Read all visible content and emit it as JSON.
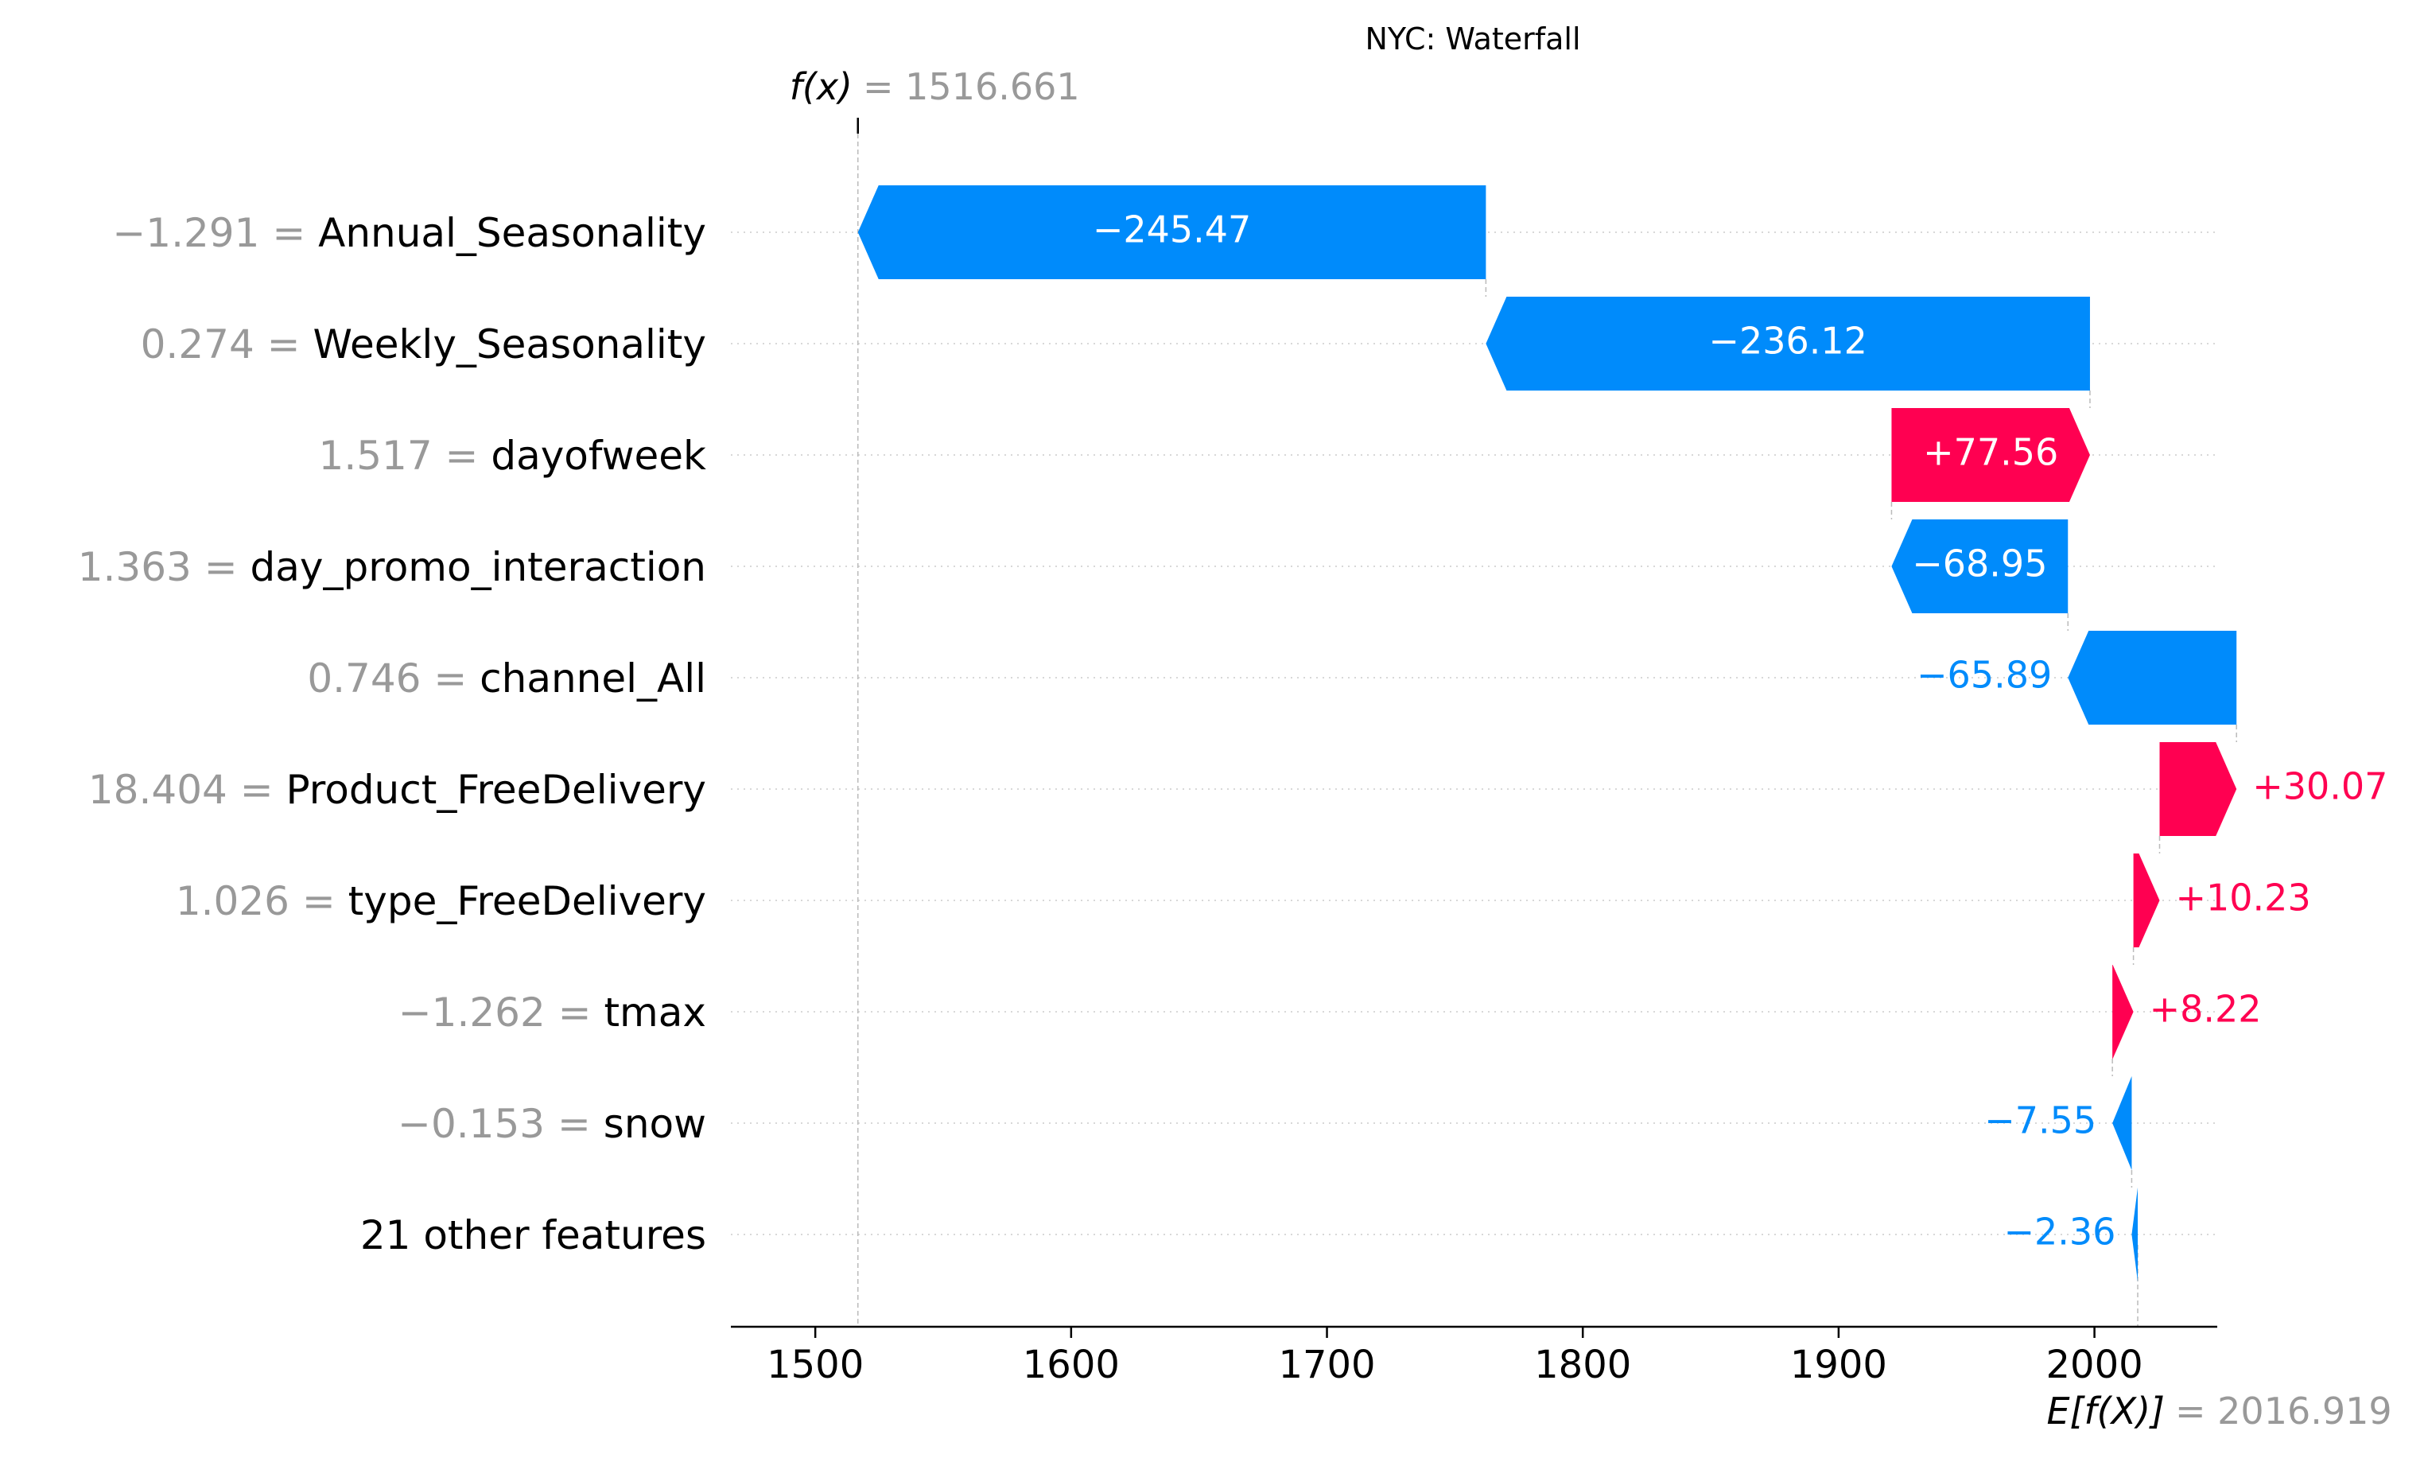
{
  "chart_data": {
    "type": "waterfall",
    "title": "NYC: Waterfall",
    "fx_label": "f(x)",
    "fx_value": "1516.661",
    "base_label": "E[f(X)]",
    "base_value": "2016.919",
    "fx_numeric": 1516.661,
    "base_numeric": 2016.919,
    "xlim": [
      1467,
      2048
    ],
    "xticks": [
      1500,
      1600,
      1700,
      1800,
      1900,
      2000
    ],
    "grid": "horizontal-dotted",
    "colors": {
      "positive": "#ff0051",
      "negative": "#008bfb",
      "value_text": "#999999",
      "label_text": "#000000"
    },
    "features": [
      {
        "value": "−1.291",
        "name": "Annual_Seasonality",
        "contribution": -245.47,
        "label": "−245.47"
      },
      {
        "value": "0.274",
        "name": "Weekly_Seasonality",
        "contribution": -236.12,
        "label": "−236.12"
      },
      {
        "value": "1.517",
        "name": "dayofweek",
        "contribution": 77.56,
        "label": "+77.56"
      },
      {
        "value": "1.363",
        "name": "day_promo_interaction",
        "contribution": -68.95,
        "label": "−68.95"
      },
      {
        "value": "0.746",
        "name": "channel_All",
        "contribution": -65.89,
        "label": "−65.89"
      },
      {
        "value": "18.404",
        "name": "Product_FreeDelivery",
        "contribution": 30.07,
        "label": "+30.07"
      },
      {
        "value": "1.026",
        "name": "type_FreeDelivery",
        "contribution": 10.23,
        "label": "+10.23"
      },
      {
        "value": "−1.262",
        "name": "tmax",
        "contribution": 8.22,
        "label": "+8.22"
      },
      {
        "value": "−0.153",
        "name": "snow",
        "contribution": -7.55,
        "label": "−7.55"
      },
      {
        "value": "",
        "name": "21 other features",
        "contribution": -2.36,
        "label": "−2.36"
      }
    ]
  }
}
